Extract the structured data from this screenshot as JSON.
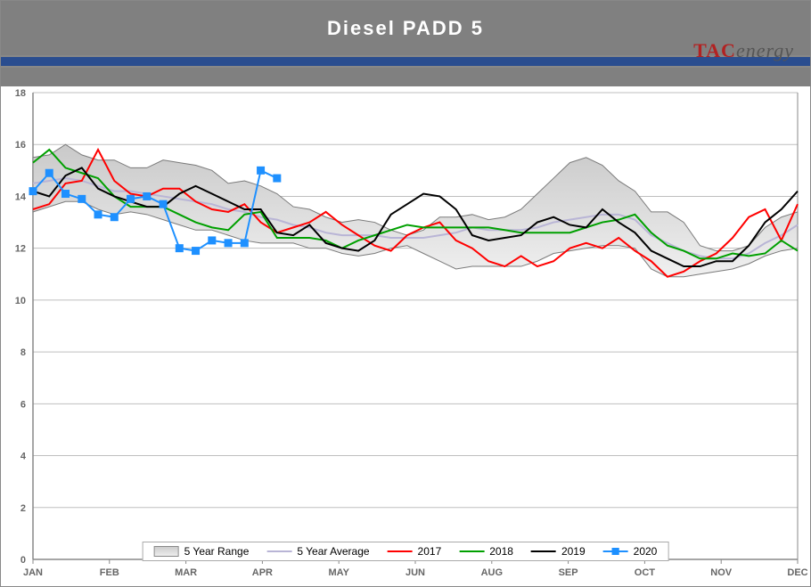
{
  "title": "Diesel PADD 5",
  "logo": {
    "tac": "TAC",
    "energy": "energy"
  },
  "chart": {
    "type": "line-area",
    "background_color": "#ffffff",
    "grid_color": "#bfbfbf",
    "axis_label_color": "#666666",
    "axis_fontsize": 11,
    "ylim": [
      0,
      18
    ],
    "ytick_step": 2,
    "xlabels": [
      "JAN",
      "FEB",
      "MAR",
      "APR",
      "MAY",
      "JUN",
      "AUG",
      "SEP",
      "OCT",
      "NOV",
      "DEC"
    ],
    "weeks_per_label": 4.36,
    "range": {
      "label": "5 Year Range",
      "fill_top": "#c9c9c9",
      "fill_bottom": "#f0f0f0",
      "stroke": "#7a7a7a",
      "upper": [
        15.5,
        15.6,
        16.0,
        15.6,
        15.4,
        15.4,
        15.1,
        15.1,
        15.4,
        15.3,
        15.2,
        15.0,
        14.5,
        14.6,
        14.4,
        14.1,
        13.6,
        13.5,
        13.2,
        13.0,
        13.1,
        13.0,
        12.7,
        12.5,
        12.7,
        13.2,
        13.2,
        13.3,
        13.1,
        13.2,
        13.5,
        14.1,
        14.7,
        15.3,
        15.5,
        15.2,
        14.6,
        14.2,
        13.4,
        13.4,
        13.0,
        12.1,
        11.9,
        11.9,
        12.1,
        12.8,
        13.2,
        13.4
      ],
      "lower": [
        13.4,
        13.6,
        13.8,
        13.8,
        13.5,
        13.3,
        13.4,
        13.3,
        13.1,
        12.9,
        12.7,
        12.7,
        12.5,
        12.3,
        12.2,
        12.2,
        12.2,
        12.0,
        12.0,
        11.8,
        11.7,
        11.8,
        12.0,
        12.1,
        11.8,
        11.5,
        11.2,
        11.3,
        11.3,
        11.3,
        11.3,
        11.5,
        11.8,
        11.9,
        12.0,
        12.1,
        12.1,
        12.0,
        11.2,
        10.9,
        10.9,
        11.0,
        11.1,
        11.2,
        11.4,
        11.7,
        11.9,
        12.0
      ]
    },
    "avg": {
      "label": "5 Year Average",
      "color": "#b9b5d6",
      "width": 2,
      "values": [
        14.5,
        14.6,
        14.7,
        14.6,
        14.4,
        14.2,
        14.2,
        14.1,
        14.0,
        13.9,
        13.8,
        13.7,
        13.5,
        13.4,
        13.2,
        13.1,
        12.9,
        12.8,
        12.6,
        12.5,
        12.5,
        12.5,
        12.4,
        12.4,
        12.4,
        12.5,
        12.6,
        12.8,
        12.7,
        12.7,
        12.7,
        12.8,
        13.0,
        13.1,
        13.2,
        13.3,
        13.3,
        13.1,
        12.5,
        12.2,
        11.9,
        11.7,
        11.6,
        11.6,
        11.8,
        12.2,
        12.5,
        12.9
      ]
    },
    "s2017": {
      "label": "2017",
      "color": "#ff0000",
      "width": 2,
      "values": [
        13.5,
        13.7,
        14.5,
        14.6,
        15.8,
        14.6,
        14.1,
        14.0,
        14.3,
        14.3,
        13.8,
        13.5,
        13.4,
        13.7,
        13.0,
        12.6,
        12.8,
        13.0,
        13.4,
        12.9,
        12.5,
        12.1,
        11.9,
        12.5,
        12.8,
        13.0,
        12.3,
        12.0,
        11.5,
        11.3,
        11.7,
        11.3,
        11.5,
        12.0,
        12.2,
        12.0,
        12.4,
        11.9,
        11.5,
        10.9,
        11.1,
        11.5,
        11.8,
        12.4,
        13.2,
        13.5,
        12.3,
        13.7
      ]
    },
    "s2018": {
      "label": "2018",
      "color": "#00a000",
      "width": 2,
      "values": [
        15.3,
        15.8,
        15.1,
        14.9,
        14.7,
        14.0,
        13.6,
        13.6,
        13.6,
        13.3,
        13.0,
        12.8,
        12.7,
        13.3,
        13.4,
        12.4,
        12.4,
        12.4,
        12.3,
        12.0,
        12.3,
        12.5,
        12.7,
        12.9,
        12.8,
        12.8,
        12.8,
        12.8,
        12.8,
        12.7,
        12.6,
        12.6,
        12.6,
        12.6,
        12.8,
        13.0,
        13.1,
        13.3,
        12.6,
        12.1,
        11.9,
        11.6,
        11.6,
        11.8,
        11.7,
        11.8,
        12.3,
        11.9
      ]
    },
    "s2019": {
      "label": "2019",
      "color": "#000000",
      "width": 2,
      "values": [
        14.2,
        14.0,
        14.8,
        15.1,
        14.3,
        14.0,
        13.8,
        13.6,
        13.6,
        14.1,
        14.4,
        14.1,
        13.8,
        13.5,
        13.5,
        12.6,
        12.5,
        12.9,
        12.2,
        12.0,
        11.9,
        12.3,
        13.3,
        13.7,
        14.1,
        14.0,
        13.5,
        12.5,
        12.3,
        12.4,
        12.5,
        13.0,
        13.2,
        12.9,
        12.8,
        13.5,
        13.0,
        12.6,
        11.9,
        11.6,
        11.3,
        11.3,
        11.5,
        11.5,
        12.1,
        13.0,
        13.5,
        14.2
      ]
    },
    "s2020": {
      "label": "2020",
      "color": "#1e90ff",
      "width": 2,
      "marker": "square",
      "marker_size": 8,
      "values": [
        14.2,
        14.9,
        14.1,
        13.9,
        13.3,
        13.2,
        13.9,
        14.0,
        13.7,
        12.0,
        11.9,
        12.3,
        12.2,
        12.2,
        15.0,
        14.7
      ]
    }
  },
  "legend_order": [
    "range",
    "avg",
    "s2017",
    "s2018",
    "s2019",
    "s2020"
  ]
}
